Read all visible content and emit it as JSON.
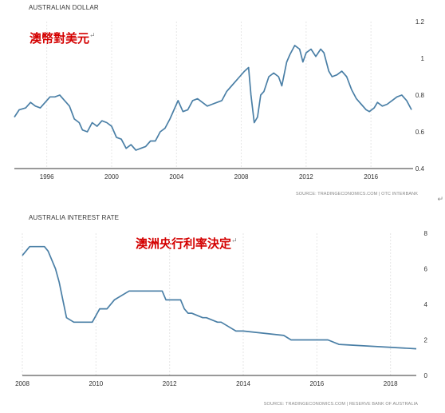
{
  "chart_data": [
    {
      "type": "line",
      "title": "AUSTRALIAN DOLLAR",
      "annotation": "澳幣對美元",
      "source": "SOURCE: TRADINGECONOMICS.COM | OTC INTERBANK",
      "xlim": [
        1994.0,
        2018.6
      ],
      "ylim": [
        0.4,
        1.2
      ],
      "x_ticks": [
        1996,
        2000,
        2004,
        2008,
        2012,
        2016
      ],
      "y_ticks": [
        0.4,
        0.6,
        0.8,
        1,
        1.2
      ],
      "grid": "vertical-dashed",
      "series": [
        {
          "color": "#4a7fa6",
          "x": [
            1994.0,
            1994.3,
            1994.7,
            1995.0,
            1995.3,
            1995.6,
            1995.9,
            1996.2,
            1996.5,
            1996.8,
            1997.1,
            1997.4,
            1997.7,
            1998.0,
            1998.2,
            1998.5,
            1998.8,
            1999.1,
            1999.4,
            1999.7,
            2000.0,
            2000.3,
            2000.6,
            2000.9,
            2001.2,
            2001.5,
            2001.8,
            2002.1,
            2002.4,
            2002.7,
            2003.0,
            2003.3,
            2003.6,
            2003.9,
            2004.1,
            2004.4,
            2004.7,
            2005.0,
            2005.3,
            2005.6,
            2005.9,
            2006.2,
            2006.5,
            2006.8,
            2007.1,
            2007.4,
            2007.7,
            2007.9,
            2008.2,
            2008.45,
            2008.6,
            2008.8,
            2009.0,
            2009.2,
            2009.4,
            2009.7,
            2010.0,
            2010.3,
            2010.5,
            2010.8,
            2011.0,
            2011.3,
            2011.6,
            2011.8,
            2012.0,
            2012.3,
            2012.6,
            2012.9,
            2013.1,
            2013.4,
            2013.6,
            2013.9,
            2014.2,
            2014.5,
            2014.8,
            2015.1,
            2015.4,
            2015.7,
            2015.9,
            2016.2,
            2016.4,
            2016.7,
            2017.0,
            2017.3,
            2017.6,
            2017.9,
            2018.2,
            2018.5
          ],
          "values": [
            0.68,
            0.72,
            0.73,
            0.76,
            0.74,
            0.73,
            0.76,
            0.79,
            0.79,
            0.8,
            0.77,
            0.74,
            0.67,
            0.65,
            0.61,
            0.6,
            0.65,
            0.63,
            0.66,
            0.65,
            0.63,
            0.57,
            0.56,
            0.51,
            0.53,
            0.5,
            0.51,
            0.52,
            0.55,
            0.55,
            0.6,
            0.62,
            0.67,
            0.73,
            0.77,
            0.71,
            0.72,
            0.77,
            0.78,
            0.76,
            0.74,
            0.75,
            0.76,
            0.77,
            0.82,
            0.85,
            0.88,
            0.9,
            0.93,
            0.95,
            0.8,
            0.65,
            0.68,
            0.8,
            0.82,
            0.9,
            0.92,
            0.9,
            0.85,
            0.98,
            1.02,
            1.07,
            1.05,
            0.98,
            1.03,
            1.05,
            1.01,
            1.05,
            1.03,
            0.93,
            0.9,
            0.91,
            0.93,
            0.9,
            0.83,
            0.78,
            0.75,
            0.72,
            0.71,
            0.73,
            0.76,
            0.74,
            0.75,
            0.77,
            0.79,
            0.8,
            0.77,
            0.72
          ]
        }
      ]
    },
    {
      "type": "line",
      "title": "AUSTRALIA INTEREST RATE",
      "annotation": "澳洲央行利率決定",
      "source": "SOURCE: TRADINGECONOMICS.COM | RESERVE BANK OF AUSTRALIA",
      "xlim": [
        2008.0,
        2018.7
      ],
      "ylim": [
        0,
        8
      ],
      "x_ticks": [
        2008,
        2010,
        2012,
        2014,
        2016,
        2018
      ],
      "y_ticks": [
        0,
        2,
        4,
        6,
        8
      ],
      "grid": "vertical-dashed",
      "series": [
        {
          "color": "#4a7fa6",
          "x": [
            2008.0,
            2008.2,
            2008.6,
            2008.7,
            2008.9,
            2009.0,
            2009.1,
            2009.2,
            2009.4,
            2009.9,
            2010.1,
            2010.3,
            2010.5,
            2010.9,
            2011.8,
            2011.9,
            2012.3,
            2012.4,
            2012.5,
            2012.6,
            2012.9,
            2013.0,
            2013.3,
            2013.4,
            2013.6,
            2013.8,
            2014.0,
            2015.1,
            2015.3,
            2016.3,
            2016.6,
            2018.7
          ],
          "values": [
            6.75,
            7.25,
            7.25,
            7.0,
            6.0,
            5.25,
            4.25,
            3.25,
            3.0,
            3.0,
            3.75,
            3.75,
            4.25,
            4.75,
            4.75,
            4.25,
            4.25,
            3.75,
            3.5,
            3.5,
            3.25,
            3.25,
            3.0,
            3.0,
            2.75,
            2.5,
            2.5,
            2.25,
            2.0,
            2.0,
            1.75,
            1.5
          ]
        }
      ]
    }
  ]
}
